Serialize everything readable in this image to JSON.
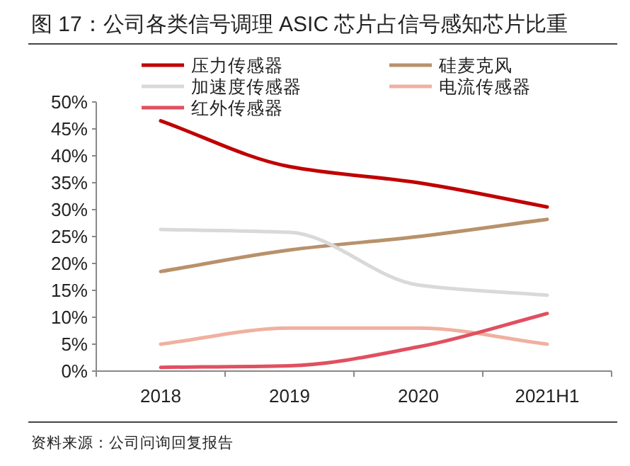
{
  "chart_data": {
    "type": "line",
    "title": "图 17：公司各类信号调理 ASIC 芯片占信号感知芯片比重",
    "categories": [
      "2018",
      "2019",
      "2020",
      "2021H1"
    ],
    "series": [
      {
        "name": "压力传感器",
        "color": "#c00000",
        "values": [
          46.5,
          38,
          35,
          30.5
        ]
      },
      {
        "name": "硅麦克风",
        "color": "#b8916b",
        "values": [
          18.5,
          22.5,
          25,
          28.2
        ]
      },
      {
        "name": "加速度传感器",
        "color": "#d9d9d9",
        "values": [
          26.3,
          25.8,
          16,
          14.1
        ]
      },
      {
        "name": "电流传感器",
        "color": "#f0b0a0",
        "values": [
          5,
          8,
          8,
          5
        ]
      },
      {
        "name": "红外传感器",
        "color": "#e05060",
        "values": [
          0.7,
          1,
          4.5,
          10.7
        ]
      }
    ],
    "ylim": [
      0,
      50
    ],
    "yticks": [
      {
        "value": 0,
        "label": "0%"
      },
      {
        "value": 5,
        "label": "5%"
      },
      {
        "value": 10,
        "label": "10%"
      },
      {
        "value": 15,
        "label": "15%"
      },
      {
        "value": 20,
        "label": "20%"
      },
      {
        "value": 25,
        "label": "25%"
      },
      {
        "value": 30,
        "label": "30%"
      },
      {
        "value": 35,
        "label": "35%"
      },
      {
        "value": 40,
        "label": "40%"
      },
      {
        "value": 45,
        "label": "45%"
      },
      {
        "value": 50,
        "label": "50%"
      }
    ],
    "legend": "top",
    "annotations": [
      "资料来源：公司问询回复报告"
    ]
  }
}
